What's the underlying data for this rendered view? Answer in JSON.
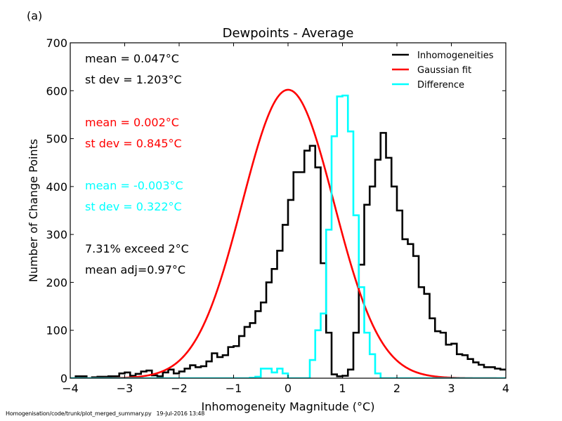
{
  "panel_label": "(a)",
  "footer": {
    "script_path": "Homogenisation/code/trunk/plot_merged_summary.py",
    "timestamp": "19-Jul-2016 13:48"
  },
  "chart_data": {
    "type": "histogram",
    "title": "Dewpoints - Average",
    "xlabel": "Inhomogeneity Magnitude (°C)",
    "ylabel": "Number of Change Points",
    "xlim": [
      -4,
      4
    ],
    "ylim": [
      0,
      700
    ],
    "x_ticks": [
      -4,
      -3,
      -2,
      -1,
      0,
      1,
      2,
      3,
      4
    ],
    "x_tick_labels": [
      "−4",
      "−3",
      "−2",
      "−1",
      "0",
      "1",
      "2",
      "3",
      "4"
    ],
    "y_ticks": [
      0,
      100,
      200,
      300,
      400,
      500,
      600,
      700
    ],
    "y_tick_labels": [
      "0",
      "100",
      "200",
      "300",
      "400",
      "500",
      "600",
      "700"
    ],
    "grid": false,
    "legend": {
      "position": "top-right",
      "entries": [
        {
          "label": "Inhomogeneities",
          "color": "#000000"
        },
        {
          "label": "Gaussian fit",
          "color": "#ff0000"
        },
        {
          "label": "Difference",
          "color": "#00ffff"
        }
      ]
    },
    "bin_width": 0.1,
    "bin_start": -4.0,
    "series": [
      {
        "name": "Inhomogeneities",
        "color": "#000000",
        "style": "step",
        "values": [
          0,
          4,
          4,
          0,
          2,
          3,
          3,
          4,
          4,
          10,
          12,
          5,
          9,
          14,
          16,
          6,
          4,
          12,
          18,
          10,
          14,
          20,
          27,
          23,
          25,
          35,
          52,
          44,
          48,
          65,
          67,
          88,
          107,
          115,
          140,
          158,
          200,
          228,
          266,
          320,
          372,
          430,
          430,
          475,
          485,
          440,
          240,
          95,
          8,
          4,
          5,
          18,
          95,
          237,
          362,
          400,
          456,
          512,
          460,
          400,
          350,
          290,
          280,
          255,
          190,
          176,
          125,
          98,
          95,
          70,
          72,
          50,
          48,
          40,
          33,
          28,
          23,
          23,
          20,
          18
        ]
      },
      {
        "name": "Difference",
        "color": "#00ffff",
        "style": "step",
        "values": [
          0,
          0,
          0,
          0,
          0,
          0,
          0,
          0,
          0,
          0,
          0,
          0,
          0,
          0,
          0,
          0,
          0,
          0,
          0,
          0,
          0,
          0,
          0,
          0,
          0,
          0,
          0,
          0,
          0,
          0,
          0,
          0,
          0,
          1,
          3,
          20,
          20,
          12,
          20,
          10,
          0,
          0,
          0,
          0,
          38,
          100,
          135,
          310,
          505,
          588,
          590,
          515,
          340,
          190,
          95,
          50,
          10,
          0,
          0,
          0,
          0,
          0,
          0,
          0,
          0,
          0,
          0,
          0,
          0,
          0,
          0,
          0,
          0,
          0,
          0,
          0,
          0,
          0,
          0,
          0
        ]
      }
    ],
    "gaussian_fit": {
      "name": "Gaussian fit",
      "color": "#ff0000",
      "mean": 0.002,
      "sd": 0.845,
      "peak": 602
    },
    "annotations": [
      {
        "text": "mean =  0.047°C",
        "color": "#000000"
      },
      {
        "text": "st dev =  1.203°C",
        "color": "#000000"
      },
      {
        "text": "mean =  0.002°C",
        "color": "#ff0000"
      },
      {
        "text": "st dev =  0.845°C",
        "color": "#ff0000"
      },
      {
        "text": "mean = -0.003°C",
        "color": "#00ffff"
      },
      {
        "text": "st dev =  0.322°C",
        "color": "#00ffff"
      },
      {
        "text": "7.31% exceed 2°C",
        "color": "#000000"
      },
      {
        "text": "mean adj=0.97°C",
        "color": "#000000"
      }
    ]
  }
}
